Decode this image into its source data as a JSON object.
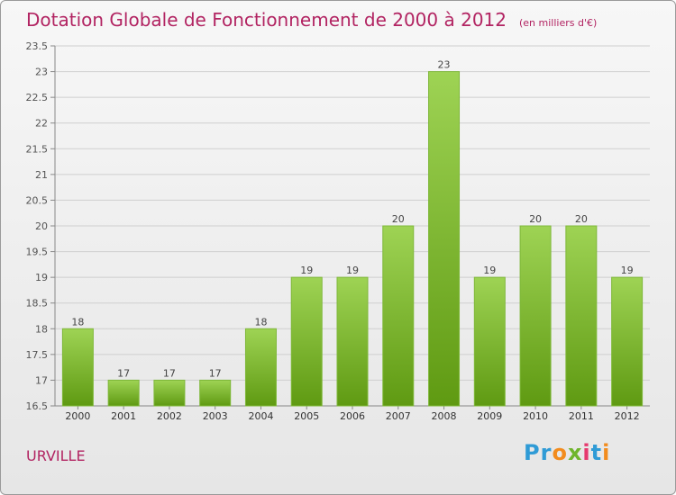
{
  "header": {
    "title": "Dotation Globale de Fonctionnement de 2000 à 2012",
    "subtitle": "(en milliers d'€)"
  },
  "footer": {
    "city": "URVILLE",
    "logo_text": "Proxiti",
    "logo_letters": [
      {
        "char": "P",
        "color": "#2f9bd6"
      },
      {
        "char": "r",
        "color": "#2f9bd6"
      },
      {
        "char": "o",
        "color": "#f28c1e"
      },
      {
        "char": "x",
        "color": "#6fb52c"
      },
      {
        "char": "i",
        "color": "#e63a6e"
      },
      {
        "char": "t",
        "color": "#2f9bd6"
      },
      {
        "char": "i",
        "color": "#f28c1e"
      }
    ]
  },
  "colors": {
    "title": "#b22462",
    "bar_top": "#9ed354",
    "bar_bottom": "#5f9a12",
    "bar_stroke": "#7fb83a",
    "grid": "#cfcfcf",
    "axis": "#888888"
  },
  "chart_data": {
    "type": "bar",
    "title": "Dotation Globale de Fonctionnement de 2000 à 2012",
    "subtitle": "(en milliers d'€)",
    "xlabel": "",
    "ylabel": "",
    "categories": [
      "2000",
      "2001",
      "2002",
      "2003",
      "2004",
      "2005",
      "2006",
      "2007",
      "2008",
      "2009",
      "2010",
      "2011",
      "2012"
    ],
    "values": [
      18,
      17,
      17,
      17,
      18,
      19,
      19,
      20,
      23,
      19,
      20,
      20,
      19
    ],
    "data_labels": [
      "18",
      "17",
      "17",
      "17",
      "18",
      "19",
      "19",
      "20",
      "23",
      "19",
      "20",
      "20",
      "19"
    ],
    "ylim": [
      16.5,
      23.5
    ],
    "yticks": [
      16.5,
      17,
      17.5,
      18,
      18.5,
      19,
      19.5,
      20,
      20.5,
      21,
      21.5,
      22,
      22.5,
      23,
      23.5
    ],
    "ytick_labels": [
      "16.5",
      "17",
      "17.5",
      "18",
      "18.5",
      "19",
      "19.5",
      "20",
      "20.5",
      "21",
      "21.5",
      "22",
      "22.5",
      "23",
      "23.5"
    ],
    "grid": true,
    "legend": "none"
  }
}
